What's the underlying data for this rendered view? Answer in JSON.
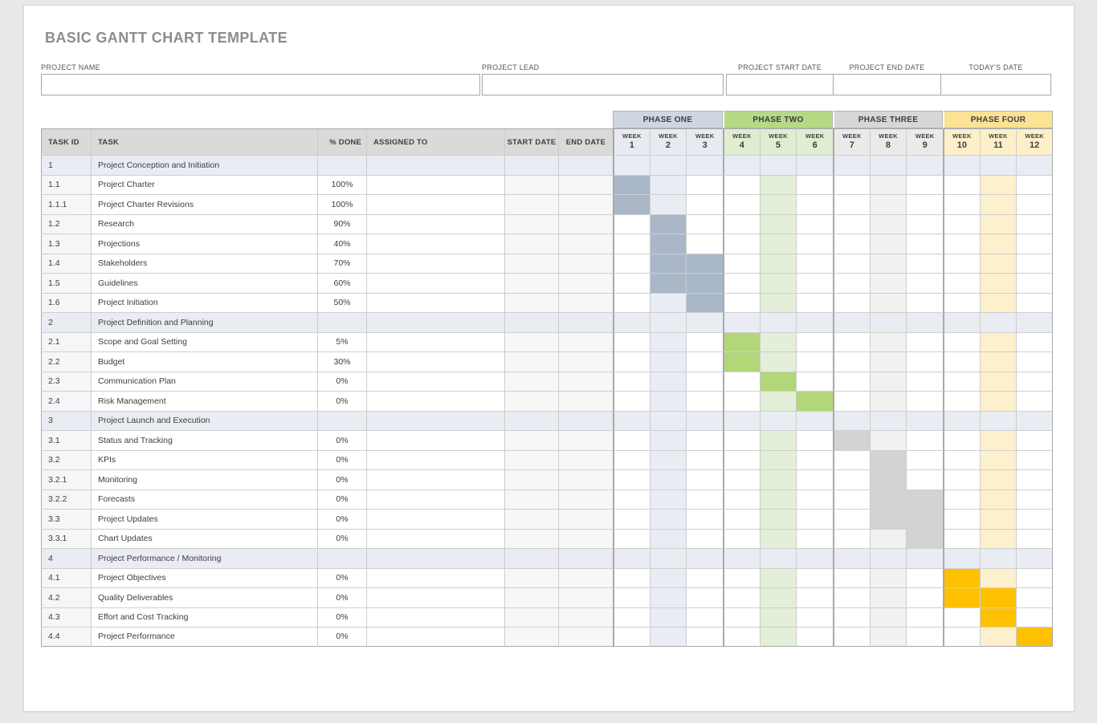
{
  "title": "BASIC GANTT CHART TEMPLATE",
  "fields": [
    {
      "label": "PROJECT NAME",
      "value": ""
    },
    {
      "label": "PROJECT LEAD",
      "value": ""
    },
    {
      "label": "PROJECT START DATE",
      "value": ""
    },
    {
      "label": "PROJECT END DATE",
      "value": ""
    },
    {
      "label": "TODAY'S DATE",
      "value": ""
    }
  ],
  "table": {
    "week_label": "WEEK",
    "columns": [
      "TASK ID",
      "TASK",
      "% DONE",
      "ASSIGNED TO",
      "START DATE",
      "END DATE"
    ],
    "section_row_color": "#e9ecf3",
    "tinted_weeks": [
      2,
      5,
      8,
      11
    ],
    "phases": [
      {
        "label": "PHASE ONE",
        "weeks": [
          "1",
          "2",
          "3"
        ],
        "header_color": "#ced6e2",
        "week_bg": "#e7eaf1",
        "bar_color": "#a9b7c9",
        "tint_color": "#e9edf3"
      },
      {
        "label": "PHASE TWO",
        "weeks": [
          "4",
          "5",
          "6"
        ],
        "header_color": "#b5d985",
        "week_bg": "#dfedd0",
        "bar_color": "#b1d778",
        "tint_color": "#e3efd9"
      },
      {
        "label": "PHASE THREE",
        "weeks": [
          "7",
          "8",
          "9"
        ],
        "header_color": "#d7d7d7",
        "week_bg": "#eaeaea",
        "bar_color": "#d3d3d3",
        "tint_color": "#f1f1f0"
      },
      {
        "label": "PHASE FOUR",
        "weeks": [
          "10",
          "11",
          "12"
        ],
        "header_color": "#fbe294",
        "week_bg": "#fdf0c9",
        "bar_color": "#fec102",
        "tint_color": "#fdf0cd"
      }
    ],
    "rows": [
      {
        "id": "1",
        "task": "Project Conception and Initiation",
        "done": "",
        "section": true,
        "bars": []
      },
      {
        "id": "1.1",
        "task": "Project Charter",
        "done": "100%",
        "section": false,
        "bars": [
          1
        ]
      },
      {
        "id": "1.1.1",
        "task": "Project Charter Revisions",
        "done": "100%",
        "section": false,
        "bars": [
          1
        ]
      },
      {
        "id": "1.2",
        "task": "Research",
        "done": "90%",
        "section": false,
        "bars": [
          2
        ]
      },
      {
        "id": "1.3",
        "task": "Projections",
        "done": "40%",
        "section": false,
        "bars": [
          2
        ]
      },
      {
        "id": "1.4",
        "task": "Stakeholders",
        "done": "70%",
        "section": false,
        "bars": [
          2,
          3
        ]
      },
      {
        "id": "1.5",
        "task": "Guidelines",
        "done": "60%",
        "section": false,
        "bars": [
          2,
          3
        ]
      },
      {
        "id": "1.6",
        "task": "Project Initiation",
        "done": "50%",
        "section": false,
        "bars": [
          3
        ]
      },
      {
        "id": "2",
        "task": "Project Definition and Planning",
        "done": "",
        "section": true,
        "bars": []
      },
      {
        "id": "2.1",
        "task": "Scope and Goal Setting",
        "done": "5%",
        "section": false,
        "bars": [
          4
        ]
      },
      {
        "id": "2.2",
        "task": "Budget",
        "done": "30%",
        "section": false,
        "bars": [
          4
        ]
      },
      {
        "id": "2.3",
        "task": "Communication Plan",
        "done": "0%",
        "section": false,
        "bars": [
          5
        ]
      },
      {
        "id": "2.4",
        "task": "Risk Management",
        "done": "0%",
        "section": false,
        "bars": [
          6
        ]
      },
      {
        "id": "3",
        "task": "Project Launch and Execution",
        "done": "",
        "section": true,
        "bars": []
      },
      {
        "id": "3.1",
        "task": "Status and Tracking",
        "done": "0%",
        "section": false,
        "bars": [
          7
        ]
      },
      {
        "id": "3.2",
        "task": "KPIs",
        "done": "0%",
        "section": false,
        "bars": [
          8
        ]
      },
      {
        "id": "3.2.1",
        "task": "Monitoring",
        "done": "0%",
        "section": false,
        "bars": [
          8
        ]
      },
      {
        "id": "3.2.2",
        "task": "Forecasts",
        "done": "0%",
        "section": false,
        "bars": [
          8,
          9
        ]
      },
      {
        "id": "3.3",
        "task": "Project Updates",
        "done": "0%",
        "section": false,
        "bars": [
          8,
          9
        ]
      },
      {
        "id": "3.3.1",
        "task": "Chart Updates",
        "done": "0%",
        "section": false,
        "bars": [
          9
        ]
      },
      {
        "id": "4",
        "task": "Project Performance / Monitoring",
        "done": "",
        "section": true,
        "bars": []
      },
      {
        "id": "4.1",
        "task": "Project Objectives",
        "done": "0%",
        "section": false,
        "bars": [
          10
        ]
      },
      {
        "id": "4.2",
        "task": "Quality Deliverables",
        "done": "0%",
        "section": false,
        "bars": [
          10,
          11
        ]
      },
      {
        "id": "4.3",
        "task": "Effort and Cost Tracking",
        "done": "0%",
        "section": false,
        "bars": [
          11
        ]
      },
      {
        "id": "4.4",
        "task": "Project Performance",
        "done": "0%",
        "section": false,
        "bars": [
          12
        ]
      }
    ]
  },
  "chart_data": {
    "type": "table",
    "title": "BASIC GANTT CHART TEMPLATE",
    "columns": [
      "TASK ID",
      "TASK",
      "% DONE",
      "ASSIGNED TO",
      "START DATE",
      "END DATE",
      "WEEK 1",
      "WEEK 2",
      "WEEK 3",
      "WEEK 4",
      "WEEK 5",
      "WEEK 6",
      "WEEK 7",
      "WEEK 8",
      "WEEK 9",
      "WEEK 10",
      "WEEK 11",
      "WEEK 12"
    ],
    "phases": [
      {
        "name": "PHASE ONE",
        "weeks": [
          1,
          2,
          3
        ],
        "color": "#a9b7c9"
      },
      {
        "name": "PHASE TWO",
        "weeks": [
          4,
          5,
          6
        ],
        "color": "#b1d778"
      },
      {
        "name": "PHASE THREE",
        "weeks": [
          7,
          8,
          9
        ],
        "color": "#d3d3d3"
      },
      {
        "name": "PHASE FOUR",
        "weeks": [
          10,
          11,
          12
        ],
        "color": "#fec102"
      }
    ],
    "rows": [
      {
        "task_id": "1",
        "task": "Project Conception and Initiation",
        "percent_done": null,
        "bar_weeks": []
      },
      {
        "task_id": "1.1",
        "task": "Project Charter",
        "percent_done": 100,
        "bar_weeks": [
          1
        ]
      },
      {
        "task_id": "1.1.1",
        "task": "Project Charter Revisions",
        "percent_done": 100,
        "bar_weeks": [
          1
        ]
      },
      {
        "task_id": "1.2",
        "task": "Research",
        "percent_done": 90,
        "bar_weeks": [
          2
        ]
      },
      {
        "task_id": "1.3",
        "task": "Projections",
        "percent_done": 40,
        "bar_weeks": [
          2
        ]
      },
      {
        "task_id": "1.4",
        "task": "Stakeholders",
        "percent_done": 70,
        "bar_weeks": [
          2,
          3
        ]
      },
      {
        "task_id": "1.5",
        "task": "Guidelines",
        "percent_done": 60,
        "bar_weeks": [
          2,
          3
        ]
      },
      {
        "task_id": "1.6",
        "task": "Project Initiation",
        "percent_done": 50,
        "bar_weeks": [
          3
        ]
      },
      {
        "task_id": "2",
        "task": "Project Definition and Planning",
        "percent_done": null,
        "bar_weeks": []
      },
      {
        "task_id": "2.1",
        "task": "Scope and Goal Setting",
        "percent_done": 5,
        "bar_weeks": [
          4
        ]
      },
      {
        "task_id": "2.2",
        "task": "Budget",
        "percent_done": 30,
        "bar_weeks": [
          4
        ]
      },
      {
        "task_id": "2.3",
        "task": "Communication Plan",
        "percent_done": 0,
        "bar_weeks": [
          5
        ]
      },
      {
        "task_id": "2.4",
        "task": "Risk Management",
        "percent_done": 0,
        "bar_weeks": [
          6
        ]
      },
      {
        "task_id": "3",
        "task": "Project Launch and Execution",
        "percent_done": null,
        "bar_weeks": []
      },
      {
        "task_id": "3.1",
        "task": "Status and Tracking",
        "percent_done": 0,
        "bar_weeks": [
          7
        ]
      },
      {
        "task_id": "3.2",
        "task": "KPIs",
        "percent_done": 0,
        "bar_weeks": [
          8
        ]
      },
      {
        "task_id": "3.2.1",
        "task": "Monitoring",
        "percent_done": 0,
        "bar_weeks": [
          8
        ]
      },
      {
        "task_id": "3.2.2",
        "task": "Forecasts",
        "percent_done": 0,
        "bar_weeks": [
          8,
          9
        ]
      },
      {
        "task_id": "3.3",
        "task": "Project Updates",
        "percent_done": 0,
        "bar_weeks": [
          8,
          9
        ]
      },
      {
        "task_id": "3.3.1",
        "task": "Chart Updates",
        "percent_done": 0,
        "bar_weeks": [
          9
        ]
      },
      {
        "task_id": "4",
        "task": "Project Performance / Monitoring",
        "percent_done": null,
        "bar_weeks": []
      },
      {
        "task_id": "4.1",
        "task": "Project Objectives",
        "percent_done": 0,
        "bar_weeks": [
          10
        ]
      },
      {
        "task_id": "4.2",
        "task": "Quality Deliverables",
        "percent_done": 0,
        "bar_weeks": [
          10,
          11
        ]
      },
      {
        "task_id": "4.3",
        "task": "Effort and Cost Tracking",
        "percent_done": 0,
        "bar_weeks": [
          11
        ]
      },
      {
        "task_id": "4.4",
        "task": "Project Performance",
        "percent_done": 0,
        "bar_weeks": [
          12
        ]
      }
    ]
  }
}
